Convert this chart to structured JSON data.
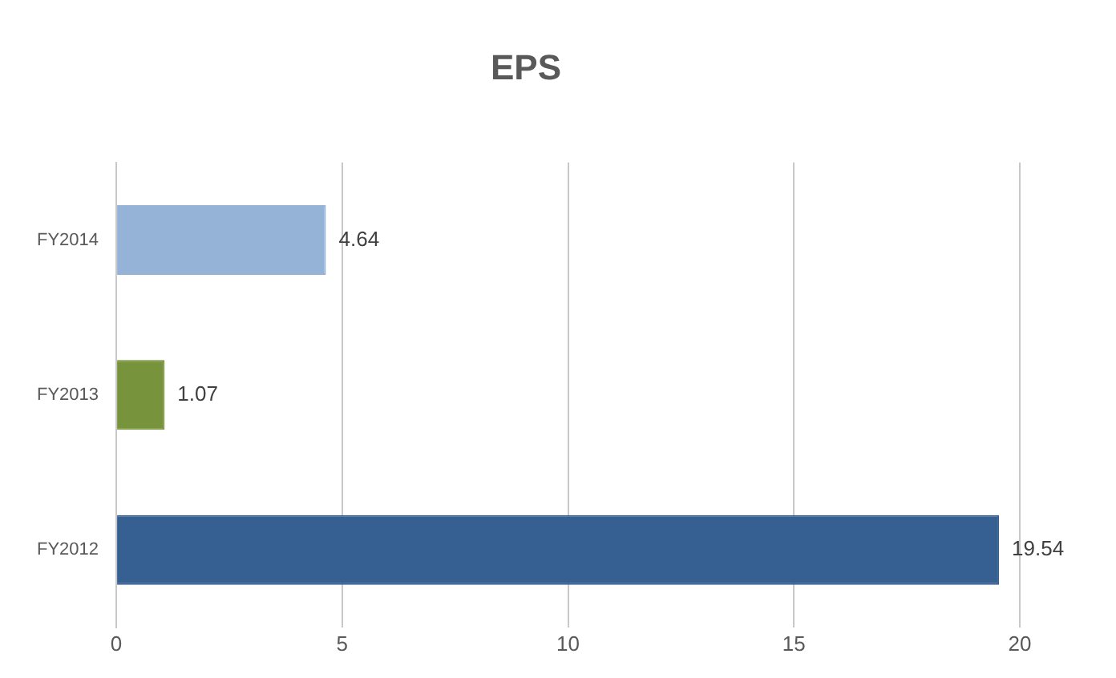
{
  "chart_data": {
    "type": "bar",
    "title": "EPS",
    "orientation": "horizontal",
    "categories": [
      "FY2014",
      "FY2013",
      "FY2012"
    ],
    "values": [
      4.64,
      1.07,
      19.54
    ],
    "colors": [
      "#95b3d7",
      "#77933c",
      "#376092"
    ],
    "xlim": [
      0,
      20
    ],
    "xticks": [
      0,
      5,
      10,
      15,
      20
    ],
    "grid": "x",
    "data_labels": true,
    "legend": false
  }
}
